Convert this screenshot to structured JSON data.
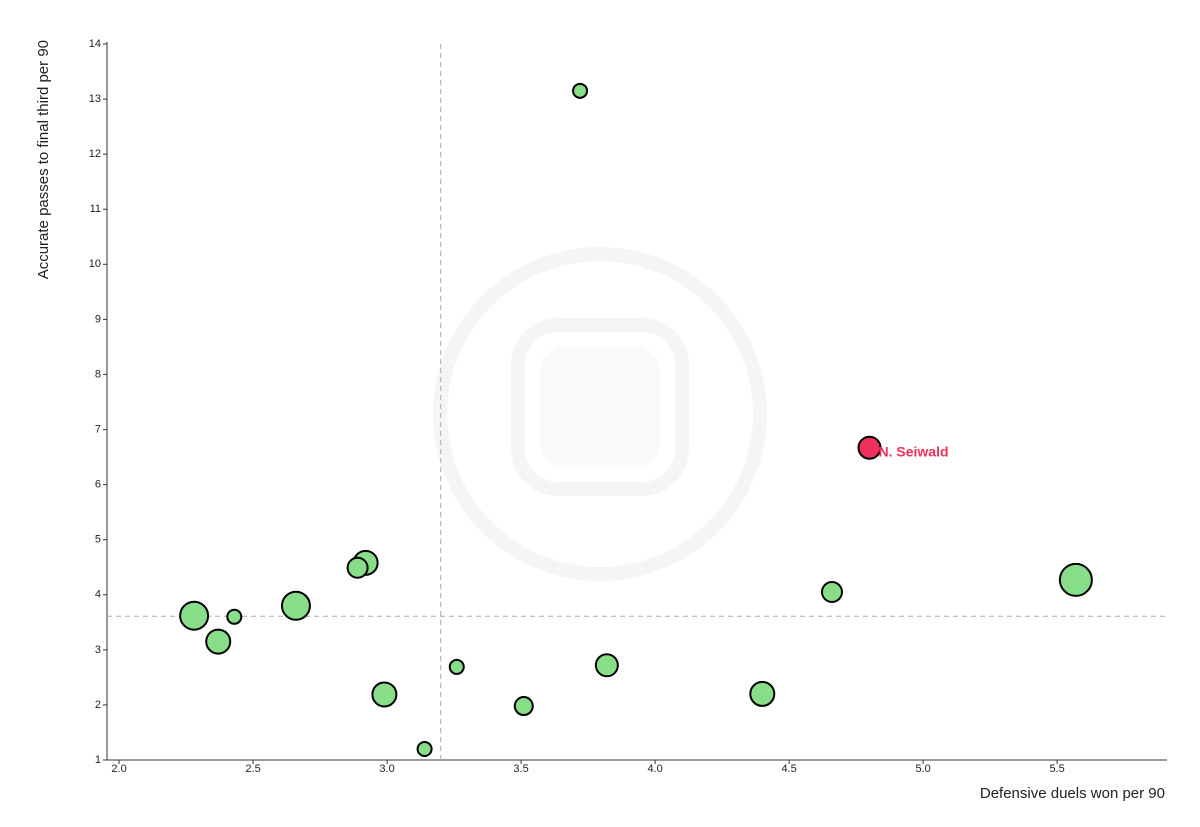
{
  "chart_data": {
    "type": "scatter",
    "x_label": "Defensive duels won per 90",
    "y_label": "Accurate passes to final third per 90",
    "x": [
      3.72,
      4.8,
      5.57,
      4.66,
      2.92,
      2.89,
      2.28,
      2.43,
      2.66,
      2.37,
      2.99,
      3.26,
      3.82,
      3.51,
      4.4,
      3.14
    ],
    "values": [
      13.15,
      6.67,
      4.27,
      4.05,
      4.58,
      4.49,
      3.62,
      3.6,
      3.8,
      3.15,
      2.19,
      2.69,
      2.72,
      1.98,
      2.2,
      1.2
    ],
    "sizes": [
      7,
      11,
      16,
      10,
      12,
      10,
      14,
      7,
      14,
      12,
      12,
      7,
      11,
      9,
      12,
      7
    ],
    "colors": [
      "#88dd88",
      "#f0305c",
      "#88dd88",
      "#88dd88",
      "#88dd88",
      "#88dd88",
      "#88dd88",
      "#88dd88",
      "#88dd88",
      "#88dd88",
      "#88dd88",
      "#88dd88",
      "#88dd88",
      "#88dd88",
      "#88dd88",
      "#88dd88"
    ],
    "labels": [
      null,
      "N. Seiwald",
      null,
      null,
      null,
      null,
      null,
      null,
      null,
      null,
      null,
      null,
      null,
      null,
      null,
      null
    ],
    "label_color": "#f0305c",
    "reference_lines": {
      "x": 3.2,
      "y": 3.61
    },
    "xlim": [
      1.955,
      5.91
    ],
    "ylim": [
      1,
      14
    ],
    "xticks": [
      {
        "value": 2,
        "label": "2.0"
      },
      2.5,
      {
        "value": 3,
        "label": "3.0"
      },
      3.5,
      {
        "value": 4,
        "label": "4.0"
      },
      4.5,
      {
        "value": 5,
        "label": "5.0"
      },
      5.5
    ],
    "yticks": [
      1,
      2,
      3,
      4,
      5,
      6,
      7,
      8,
      9,
      10,
      11,
      12,
      13,
      14
    ]
  }
}
